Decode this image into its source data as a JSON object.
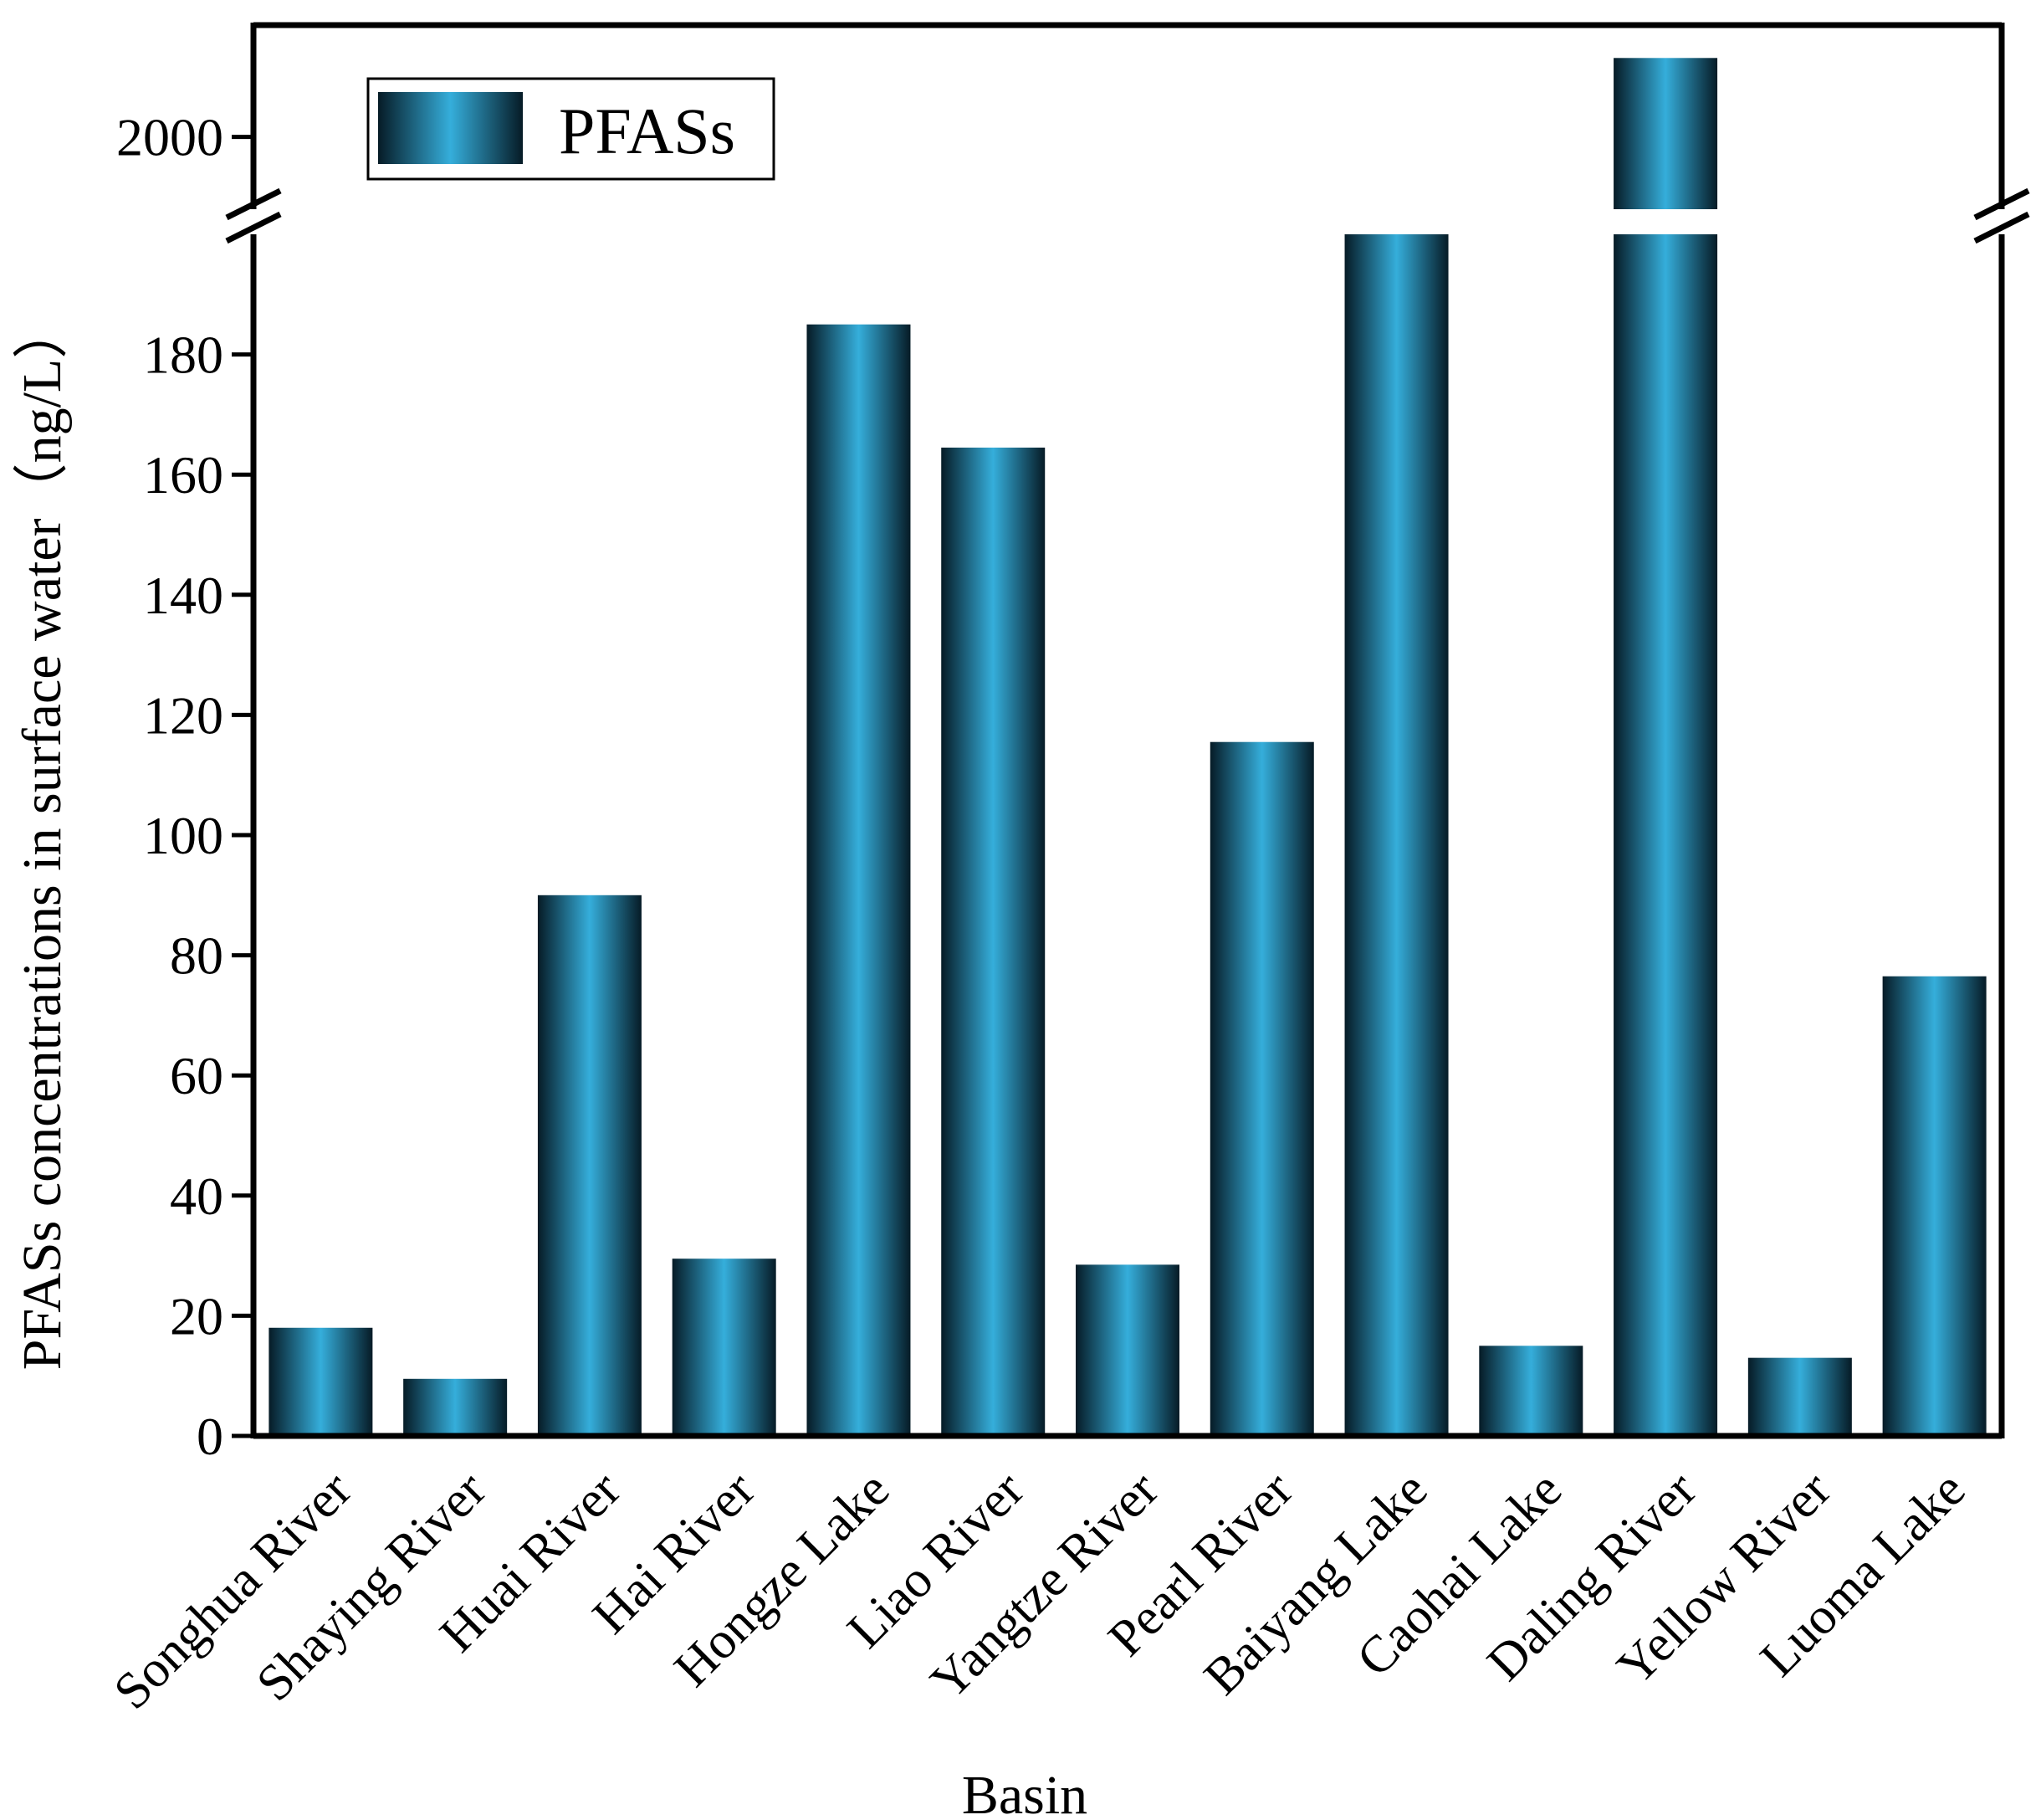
{
  "chart_data": {
    "type": "bar",
    "title": "",
    "xlabel": "Basin",
    "ylabel": "PFASs concentrations in surface water（ng/L）",
    "categories": [
      "Songhua River",
      "Shaying River",
      "Huai River",
      "Hai River",
      "Hongze Lake",
      "Liao River",
      "Yangtze River",
      "Pearl River",
      "Baiyang Lake",
      "Caohai Lake",
      "Daling River",
      "Yellow River",
      "Luoma Lake"
    ],
    "series": [
      {
        "name": "PFASs",
        "values": [
          18,
          9.5,
          90,
          29.5,
          185,
          164.5,
          28.5,
          115.5,
          1930,
          15,
          2060,
          13,
          76.5
        ]
      }
    ],
    "axis_break": {
      "lower_ylim": [
        0,
        200
      ],
      "upper_ylim": [
        1945,
        2085
      ]
    },
    "yticks_lower": [
      0,
      20,
      40,
      60,
      80,
      100,
      120,
      140,
      160,
      180
    ],
    "yticks_upper": [
      2000
    ],
    "legend": {
      "position": "top-left",
      "label": "PFASs"
    },
    "colors": {
      "bar_center": "#35AEDB",
      "bar_edge": "#061B26",
      "axis": "#000000"
    }
  }
}
